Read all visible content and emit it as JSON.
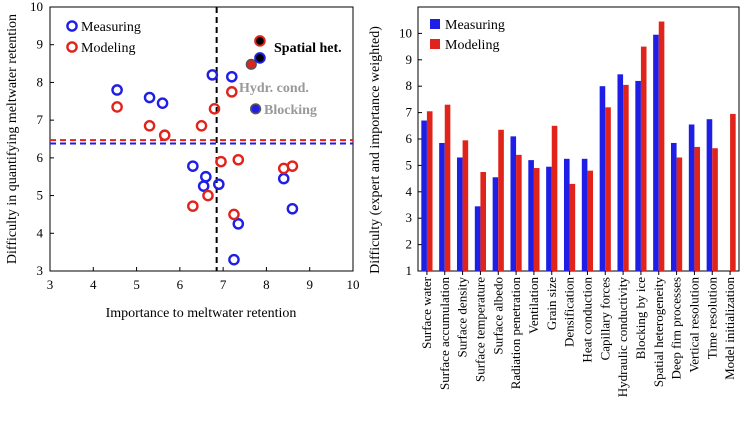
{
  "colors": {
    "measuring": "#1e1ee6",
    "modeling": "#e0241b",
    "annotation_gray": "#999999",
    "dashed_vertical": "#000000"
  },
  "chart_data": [
    {
      "type": "scatter",
      "xlabel": "Importance to meltwater retention",
      "ylabel": "Difficulty in quantifying meltwater retention",
      "xlim": [
        3,
        10
      ],
      "ylim": [
        3,
        10
      ],
      "xticks": [
        3,
        4,
        5,
        6,
        7,
        8,
        9,
        10
      ],
      "yticks": [
        3,
        4,
        5,
        6,
        7,
        8,
        9,
        10
      ],
      "legend": {
        "placement": "top-left",
        "entries": [
          "Measuring",
          "Modeling"
        ]
      },
      "series": [
        {
          "name": "Measuring",
          "points": [
            {
              "x": 4.55,
              "y": 7.8
            },
            {
              "x": 5.3,
              "y": 7.6
            },
            {
              "x": 5.6,
              "y": 7.45
            },
            {
              "x": 6.75,
              "y": 8.2
            },
            {
              "x": 7.2,
              "y": 8.15
            },
            {
              "x": 6.3,
              "y": 5.78
            },
            {
              "x": 6.6,
              "y": 5.5
            },
            {
              "x": 6.55,
              "y": 5.25
            },
            {
              "x": 6.9,
              "y": 5.3
            },
            {
              "x": 8.4,
              "y": 5.45
            },
            {
              "x": 8.6,
              "y": 4.65
            },
            {
              "x": 7.35,
              "y": 4.25
            },
            {
              "x": 7.25,
              "y": 3.3
            }
          ]
        },
        {
          "name": "Modeling",
          "points": [
            {
              "x": 4.55,
              "y": 7.35
            },
            {
              "x": 5.3,
              "y": 6.85
            },
            {
              "x": 5.65,
              "y": 6.6
            },
            {
              "x": 6.5,
              "y": 6.85
            },
            {
              "x": 6.8,
              "y": 7.3
            },
            {
              "x": 7.2,
              "y": 7.75
            },
            {
              "x": 6.95,
              "y": 5.9
            },
            {
              "x": 7.35,
              "y": 5.95
            },
            {
              "x": 6.3,
              "y": 4.72
            },
            {
              "x": 6.65,
              "y": 5.0
            },
            {
              "x": 7.25,
              "y": 4.5
            },
            {
              "x": 8.4,
              "y": 5.72
            },
            {
              "x": 8.6,
              "y": 5.78
            }
          ]
        }
      ],
      "highlighted": [
        {
          "label": "Spatial het.",
          "measuring": {
            "x": 7.85,
            "y": 8.65
          },
          "modeling": {
            "x": 7.85,
            "y": 9.1
          },
          "style": "bold-black"
        },
        {
          "label": "Hydr. cond.",
          "measuring": {
            "x": 7.85,
            "y": 8.65
          },
          "modeling": {
            "x": 7.65,
            "y": 8.48
          },
          "style": "bold-gray"
        },
        {
          "label": "Blocking",
          "measuring": {
            "x": 7.75,
            "y": 7.3
          },
          "modeling": null,
          "style": "bold-gray"
        }
      ],
      "reference_lines": {
        "vertical_x": 6.85,
        "measuring_mean_y": 6.38,
        "modeling_mean_y": 6.47
      }
    },
    {
      "type": "bar",
      "ylabel": "Difficulty (expert and importance weighted)",
      "ylim": [
        1,
        11
      ],
      "yticks": [
        1,
        2,
        3,
        4,
        5,
        6,
        7,
        8,
        9,
        10
      ],
      "legend": {
        "placement": "top-left",
        "entries": [
          "Measuring",
          "Modeling"
        ]
      },
      "categories": [
        "Surface water",
        "Surface accumulation",
        "Surface density",
        "Surface temperature",
        "Surface albedo",
        "Radiation penetration",
        "Ventilation",
        "Grain size",
        "Densification",
        "Heat conduction",
        "Capillary forces",
        "Hydraulic conductivity",
        "Blocking by ice",
        "Spatial heterogeneity",
        "Deep firn processes",
        "Vertical resolution",
        "Time resolution",
        "Model initialization"
      ],
      "series": [
        {
          "name": "Measuring",
          "values": [
            6.7,
            5.85,
            5.3,
            3.45,
            4.55,
            6.1,
            5.2,
            4.95,
            5.25,
            5.25,
            8.0,
            8.45,
            8.2,
            9.95,
            5.85,
            6.55,
            6.75,
            null
          ]
        },
        {
          "name": "Modeling",
          "values": [
            7.05,
            7.3,
            5.95,
            4.75,
            6.35,
            5.4,
            4.9,
            6.5,
            4.3,
            4.8,
            7.2,
            8.05,
            9.5,
            10.45,
            5.3,
            5.7,
            5.65,
            6.95
          ]
        }
      ]
    }
  ]
}
